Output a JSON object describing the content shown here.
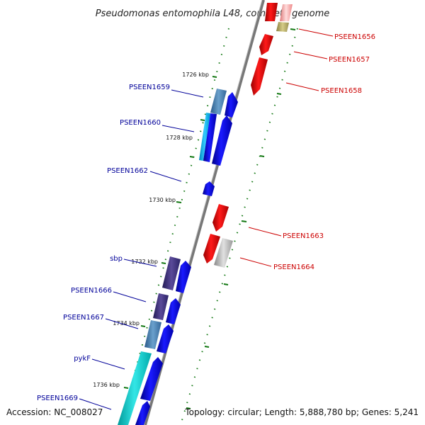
{
  "title": "Pseudomonas entomophila L48, complete genome",
  "accession": "Accession: NC_008027",
  "summary": "Topology: circular; Length: 5,888,780 bp; Genes: 5,241",
  "colors": {
    "backbone": "#888888",
    "minus_label": "#000099",
    "plus_label": "#cc0000",
    "gc_dots": "#117711"
  },
  "ticks": [
    {
      "label": "1726 kbp"
    },
    {
      "label": "1728 kbp"
    },
    {
      "label": "1730 kbp"
    },
    {
      "label": "1732 kbp"
    },
    {
      "label": "1734 kbp"
    },
    {
      "label": "1736 kbp"
    }
  ],
  "gene_labels": [
    {
      "text": "PSEEN1656",
      "strand": "plus"
    },
    {
      "text": "PSEEN1657",
      "strand": "plus"
    },
    {
      "text": "PSEEN1658",
      "strand": "plus"
    },
    {
      "text": "PSEEN1659",
      "strand": "minus"
    },
    {
      "text": "PSEEN1660",
      "strand": "minus"
    },
    {
      "text": "PSEEN1662",
      "strand": "minus"
    },
    {
      "text": "PSEEN1663",
      "strand": "plus"
    },
    {
      "text": "PSEEN1664",
      "strand": "plus"
    },
    {
      "text": "sbp",
      "strand": "minus"
    },
    {
      "text": "PSEEN1666",
      "strand": "minus"
    },
    {
      "text": "PSEEN1667",
      "strand": "minus"
    },
    {
      "text": "pykF",
      "strand": "minus"
    },
    {
      "text": "PSEEN1669",
      "strand": "minus"
    }
  ]
}
